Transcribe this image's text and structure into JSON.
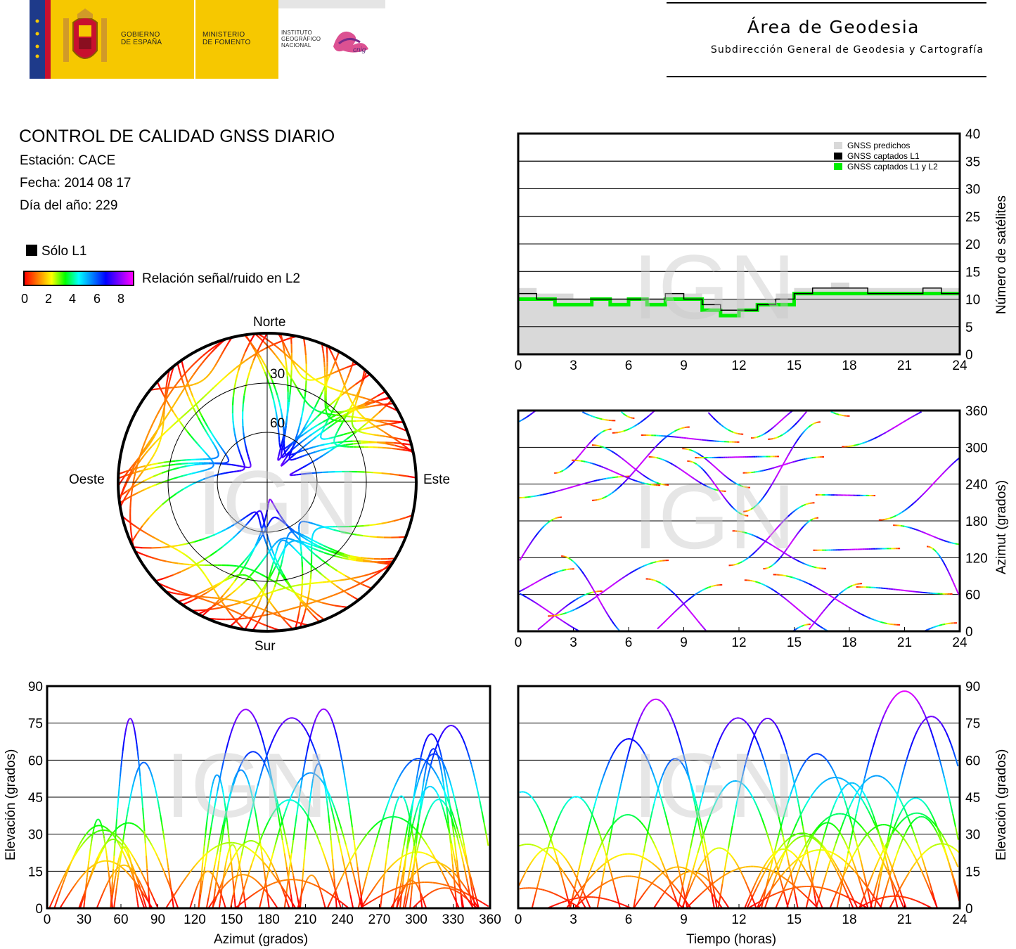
{
  "header": {
    "gobierno_line1": "GOBIERNO",
    "gobierno_line2": "DE ESPAÑA",
    "ministerio_line1": "MINISTERIO",
    "ministerio_line2": "DE FOMENTO",
    "instituto_line1": "INSTITUTO",
    "instituto_line2": "GEOGRÁFICO",
    "instituto_line3": "NACIONAL",
    "cnig": "cnig",
    "area_title": "Área de Geodesia",
    "area_subtitle": "Subdirección General de Geodesia y Cartografía"
  },
  "info": {
    "title": "CONTROL DE CALIDAD GNSS DIARIO",
    "station": "Estación: CACE",
    "date": "Fecha: 2014 08 17",
    "doy": "Día del año: 229"
  },
  "legend": {
    "l1_only": "Sólo L1",
    "snr_label": "Relación señal/ruido en L2",
    "snr_ticks": [
      "0",
      "2",
      "4",
      "6",
      "8"
    ]
  },
  "watermark": "IGN",
  "colors": {
    "predicted": "#d9d9d9",
    "l1": "#000000",
    "l1l2": "#00ee00",
    "snr_scale": [
      "#ff0000",
      "#ff8000",
      "#ffff00",
      "#00ff00",
      "#00ffff",
      "#0080ff",
      "#0000ff",
      "#8000ff",
      "#ff00ff"
    ]
  },
  "chart_data": [
    {
      "type": "polar",
      "id": "skyplot",
      "direction_labels": {
        "north": "Norte",
        "south": "Sur",
        "east": "Este",
        "west": "Oeste"
      },
      "ring_labels": [
        "30",
        "60"
      ],
      "color_scale": "snr_L2"
    },
    {
      "type": "area",
      "id": "satellite-count",
      "x_ticks": [
        "0",
        "3",
        "6",
        "9",
        "12",
        "15",
        "18",
        "21",
        "24"
      ],
      "y_ticks": [
        "0",
        "5",
        "10",
        "15",
        "20",
        "25",
        "30",
        "35",
        "40"
      ],
      "xlim": [
        0,
        24
      ],
      "ylim": [
        0,
        40
      ],
      "ylabel": "Número de satélites",
      "grid": true,
      "legend": {
        "position": "top-right",
        "entries": [
          "GNSS predichos",
          "GNSS captados L1",
          "GNSS captados L1 y L2"
        ]
      },
      "series": [
        {
          "name": "GNSS predichos",
          "x": [
            0,
            1,
            2,
            3,
            4,
            5,
            6,
            7,
            8,
            9,
            10,
            11,
            12,
            13,
            14,
            15,
            16,
            17,
            18,
            19,
            20,
            21,
            22,
            23,
            24
          ],
          "values": [
            12,
            11,
            11,
            10,
            10,
            10,
            10,
            10,
            11,
            11,
            10,
            10,
            10,
            10,
            11,
            12,
            12,
            13,
            12,
            12,
            12,
            12,
            12,
            12,
            12
          ]
        },
        {
          "name": "GNSS captados L1",
          "x": [
            0,
            1,
            2,
            3,
            4,
            5,
            6,
            7,
            8,
            9,
            10,
            11,
            12,
            13,
            14,
            15,
            16,
            17,
            18,
            19,
            20,
            21,
            22,
            23,
            24
          ],
          "values": [
            11,
            10,
            10,
            10,
            10,
            10,
            10,
            10,
            11,
            10,
            9,
            8,
            8,
            9,
            10,
            11,
            12,
            12,
            12,
            11,
            11,
            11,
            12,
            11,
            11
          ]
        },
        {
          "name": "GNSS captados L1 y L2",
          "x": [
            0,
            1,
            2,
            3,
            4,
            5,
            6,
            7,
            8,
            9,
            10,
            11,
            12,
            13,
            14,
            15,
            16,
            17,
            18,
            19,
            20,
            21,
            22,
            23,
            24
          ],
          "values": [
            10,
            10,
            9,
            9,
            10,
            9,
            10,
            9,
            10,
            10,
            8,
            7,
            8,
            9,
            9,
            11,
            11,
            11,
            11,
            11,
            11,
            11,
            11,
            11,
            11
          ]
        }
      ]
    },
    {
      "type": "scatter",
      "id": "azimuth-time",
      "x_ticks": [
        "0",
        "3",
        "6",
        "9",
        "12",
        "15",
        "18",
        "21",
        "24"
      ],
      "y_ticks": [
        "0",
        "60",
        "120",
        "180",
        "240",
        "300",
        "360"
      ],
      "xlim": [
        0,
        24
      ],
      "ylim": [
        0,
        360
      ],
      "ylabel": "Azimut (grados)",
      "grid": true
    },
    {
      "type": "scatter",
      "id": "elevation-azimuth",
      "x_ticks": [
        "0",
        "30",
        "60",
        "90",
        "120",
        "150",
        "180",
        "210",
        "240",
        "270",
        "300",
        "330",
        "360"
      ],
      "y_ticks": [
        "0",
        "15",
        "30",
        "45",
        "60",
        "75",
        "90"
      ],
      "xlim": [
        0,
        360
      ],
      "ylim": [
        0,
        90
      ],
      "xlabel": "Azimut (grados)",
      "ylabel": "Elevación (grados)",
      "grid": true
    },
    {
      "type": "scatter",
      "id": "elevation-time",
      "x_ticks": [
        "0",
        "3",
        "6",
        "9",
        "12",
        "15",
        "18",
        "21",
        "24"
      ],
      "y_ticks": [
        "0",
        "15",
        "30",
        "45",
        "60",
        "75",
        "90"
      ],
      "xlim": [
        0,
        24
      ],
      "ylim": [
        0,
        90
      ],
      "xlabel": "Tiempo (horas)",
      "ylabel": "Elevación (grados)",
      "grid": true
    }
  ]
}
